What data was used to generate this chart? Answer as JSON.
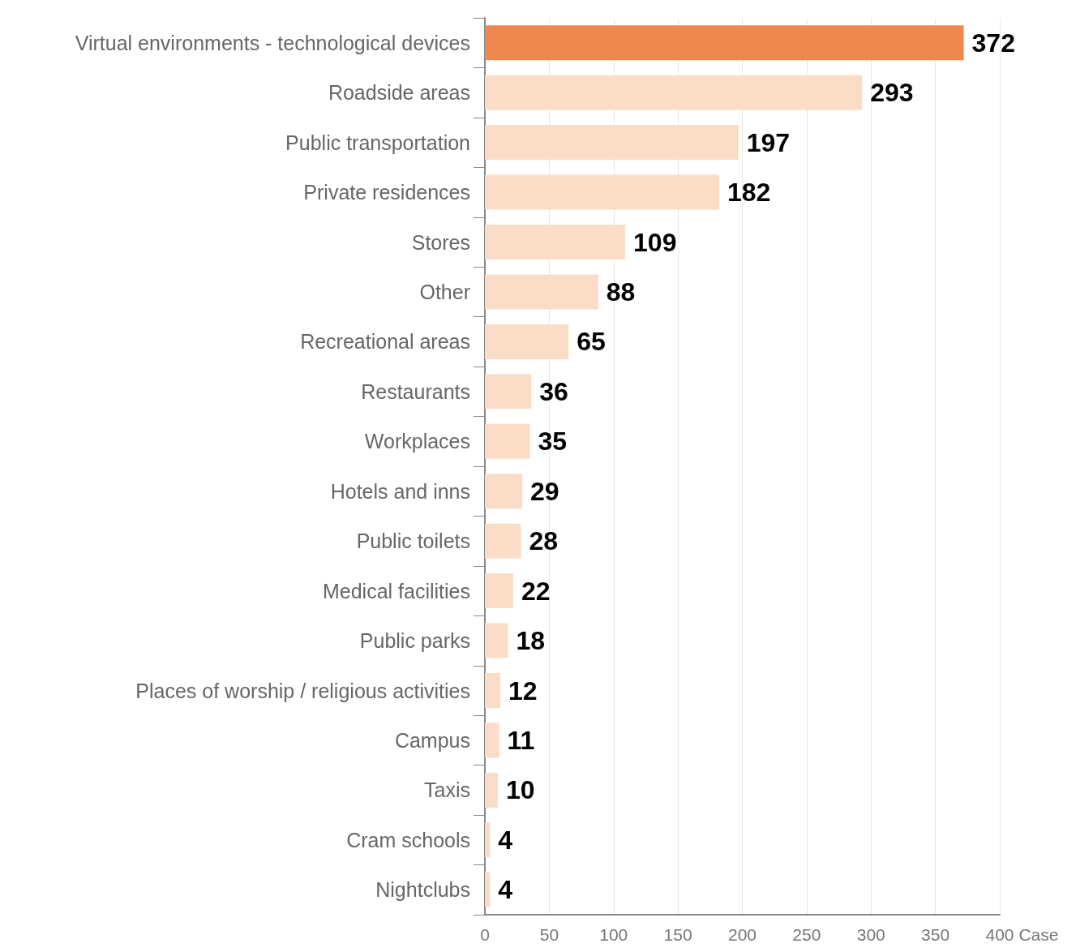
{
  "chart_data": {
    "type": "bar",
    "orientation": "horizontal",
    "xlabel": "Case",
    "categories": [
      "Virtual environments - technological devices",
      "Roadside areas",
      "Public transportation",
      "Private residences",
      "Stores",
      "Other",
      "Recreational areas",
      "Restaurants",
      "Workplaces",
      "Hotels and inns",
      "Public toilets",
      "Medical facilities",
      "Public parks",
      "Places of worship / religious activities",
      "Campus",
      "Taxis",
      "Cram schools",
      "Nightclubs"
    ],
    "values": [
      372,
      293,
      197,
      182,
      109,
      88,
      65,
      36,
      35,
      29,
      28,
      22,
      18,
      12,
      11,
      10,
      4,
      4
    ],
    "colors": [
      "#f0874f",
      "#fbdcc6",
      "#fbdcc6",
      "#fbdcc6",
      "#fbdcc6",
      "#fbdcc6",
      "#fbdcc6",
      "#fbdcc6",
      "#fbdcc6",
      "#fbdcc6",
      "#fbdcc6",
      "#fbdcc6",
      "#fbdcc6",
      "#fbdcc6",
      "#fbdcc6",
      "#fbdcc6",
      "#fbdcc6",
      "#fbdcc6"
    ],
    "xlim": [
      0,
      400
    ],
    "xticks": [
      0,
      50,
      100,
      150,
      200,
      250,
      300,
      350,
      400
    ],
    "grid": "x",
    "data_labels": true
  }
}
